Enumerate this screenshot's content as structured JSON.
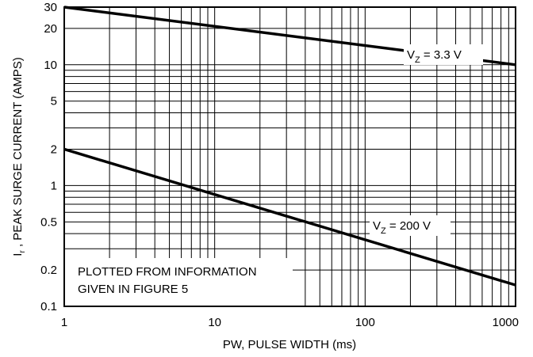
{
  "chart_data": {
    "type": "line",
    "xscale": "log",
    "yscale": "log",
    "xlim": [
      1,
      1000
    ],
    "ylim": [
      0.1,
      30
    ],
    "xlabel": "PW, PULSE WIDTH (ms)",
    "ylabel_main": "I",
    "ylabel_sub": "r",
    "ylabel_rest": " , PEAK SURGE CURRENT (AMPS)",
    "x_tick_labels": [
      {
        "value": 1,
        "label": "1"
      },
      {
        "value": 10,
        "label": "10"
      },
      {
        "value": 100,
        "label": "100"
      },
      {
        "value": 1000,
        "label": "1000"
      }
    ],
    "y_tick_labels": [
      {
        "value": 30,
        "label": "30"
      },
      {
        "value": 20,
        "label": "20"
      },
      {
        "value": 10,
        "label": "10"
      },
      {
        "value": 5,
        "label": "5"
      },
      {
        "value": 2,
        "label": "2"
      },
      {
        "value": 1,
        "label": "1"
      },
      {
        "value": 0.5,
        "label": "0.5"
      },
      {
        "value": 0.2,
        "label": "0.2"
      },
      {
        "value": 0.1,
        "label": "0.1"
      }
    ],
    "series": [
      {
        "label_main": "V",
        "label_sub": "Z",
        "label_rest": " = 3.3 V",
        "x": [
          1,
          1000
        ],
        "y": [
          30,
          10
        ]
      },
      {
        "label_main": "V",
        "label_sub": "Z",
        "label_rest": " = 200 V",
        "x": [
          1,
          1000
        ],
        "y": [
          2,
          0.15
        ]
      }
    ],
    "annotation_lines": [
      "PLOTTED FROM INFORMATION",
      "GIVEN IN FIGURE 5"
    ],
    "grid": true
  }
}
